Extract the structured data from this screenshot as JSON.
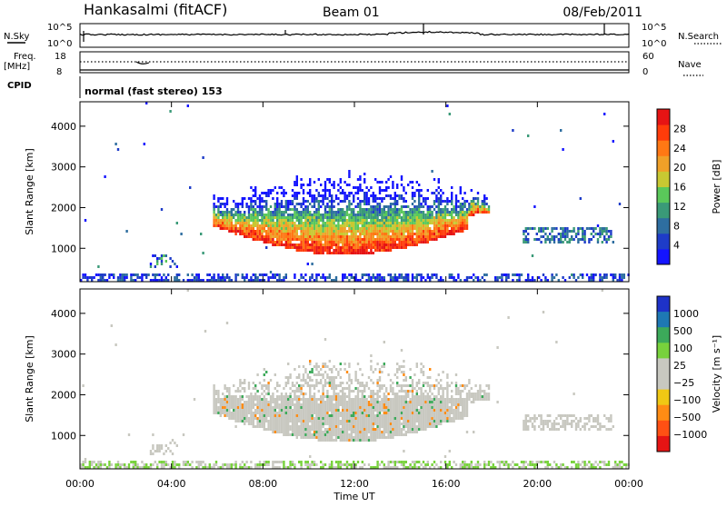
{
  "header": {
    "station": "Hankasalmi (fitACF)",
    "beam": "Beam 01",
    "date": "08/Feb/2011"
  },
  "top_panels": {
    "nsky_label": "N.Sky",
    "nsearch_label": "N.Search",
    "noise_ticks": [
      "10^5",
      "10^0"
    ],
    "freq_label": "Freq.",
    "freq_unit": "[MHz]",
    "freq_ticks": [
      "18",
      "8"
    ],
    "nave_label": "Nave",
    "nave_ticks": [
      "60",
      "0"
    ],
    "cpid_label": "CPID",
    "cpid_text": "normal (fast stereo) 153"
  },
  "chart_data": [
    {
      "type": "heatmap",
      "name": "power",
      "ylabel": "Slant Range [km]",
      "xlabel": "",
      "x_ticks": [
        "00:00",
        "04:00",
        "08:00",
        "12:00",
        "16:00",
        "20:00",
        "00:00"
      ],
      "x_range_hours": [
        0,
        24
      ],
      "ylim": [
        180,
        4600
      ],
      "y_ticks": [
        1000,
        2000,
        3000,
        4000
      ],
      "colorbar": {
        "label": "Power [dB]",
        "ticks": [
          "4",
          "8",
          "12",
          "16",
          "20",
          "24",
          "28"
        ],
        "colors": [
          "#1414ff",
          "#1e3cc8",
          "#2e6ea0",
          "#3a9a78",
          "#5ac85a",
          "#c8c832",
          "#f0a028",
          "#ff7814",
          "#ff3c0a",
          "#e61414"
        ]
      }
    },
    {
      "type": "heatmap",
      "name": "velocity",
      "ylabel": "Slant Range [km]",
      "xlabel": "Time UT",
      "x_ticks": [
        "00:00",
        "04:00",
        "08:00",
        "12:00",
        "16:00",
        "20:00",
        "00:00"
      ],
      "x_range_hours": [
        0,
        24
      ],
      "ylim": [
        180,
        4600
      ],
      "y_ticks": [
        1000,
        2000,
        3000,
        4000
      ],
      "colorbar": {
        "label": "Velocity [m s⁻¹]",
        "ticks": [
          "1000",
          "500",
          "100",
          "25",
          "−25",
          "−100",
          "−500",
          "−1000"
        ],
        "colors": [
          "#1e32c8",
          "#1e78b4",
          "#3caa5a",
          "#78d23c",
          "#c8c8c0",
          "#c8c8c0",
          "#f0c814",
          "#ff8c14",
          "#ff5014",
          "#e61414"
        ]
      }
    }
  ]
}
